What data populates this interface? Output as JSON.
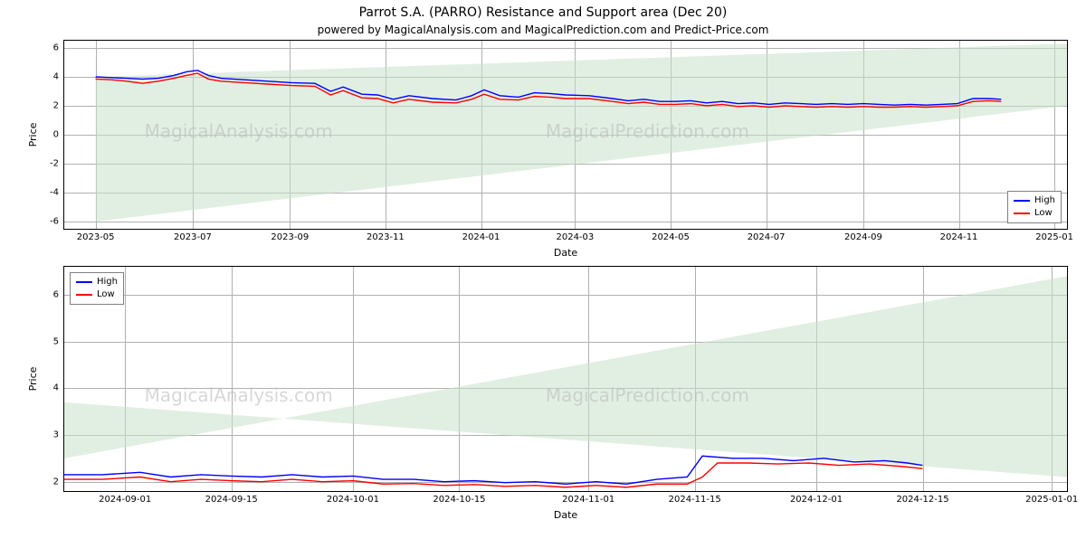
{
  "title": "Parrot S.A. (PARRO) Resistance and Support area (Dec 20)",
  "subtitle": "powered by MagicalAnalysis.com and MagicalPrediction.com and Predict-Price.com",
  "watermark_texts": [
    "MagicalAnalysis.com",
    "MagicalPrediction.com"
  ],
  "colors": {
    "high": "#0000ff",
    "low": "#ff0000",
    "grid": "#b0b0b0",
    "fan_fill": "#c9e2cb",
    "fan_fill_opacity": 0.55,
    "background": "#ffffff",
    "text": "#000000",
    "border": "#000000",
    "watermark": "#b8b8b8"
  },
  "legend": {
    "items": [
      {
        "label": "High",
        "color_key": "high"
      },
      {
        "label": "Low",
        "color_key": "low"
      }
    ]
  },
  "chart_top": {
    "type": "line",
    "ylabel": "Price",
    "xlabel": "Date",
    "ylim": [
      -6.5,
      6.5
    ],
    "yticks": [
      -6,
      -4,
      -2,
      0,
      2,
      4,
      6
    ],
    "x_range": [
      0,
      640
    ],
    "legend_pos": "bottom-right",
    "xticks": [
      {
        "label": "2023-05",
        "t": 20
      },
      {
        "label": "2023-07",
        "t": 82
      },
      {
        "label": "2023-09",
        "t": 144
      },
      {
        "label": "2023-11",
        "t": 205
      },
      {
        "label": "2024-01",
        "t": 266
      },
      {
        "label": "2024-03",
        "t": 326
      },
      {
        "label": "2024-05",
        "t": 387
      },
      {
        "label": "2024-07",
        "t": 448
      },
      {
        "label": "2024-09",
        "t": 510
      },
      {
        "label": "2024-11",
        "t": 571
      },
      {
        "label": "2025-01",
        "t": 632
      }
    ],
    "fan": {
      "vertices_tyv": [
        [
          20,
          -6.0
        ],
        [
          640,
          2.0
        ],
        [
          640,
          6.3
        ],
        [
          20,
          4.0
        ]
      ]
    },
    "series_high": [
      {
        "t": 20,
        "v": 4.0
      },
      {
        "t": 30,
        "v": 3.95
      },
      {
        "t": 40,
        "v": 3.9
      },
      {
        "t": 50,
        "v": 3.85
      },
      {
        "t": 60,
        "v": 3.9
      },
      {
        "t": 70,
        "v": 4.1
      },
      {
        "t": 78,
        "v": 4.35
      },
      {
        "t": 85,
        "v": 4.45
      },
      {
        "t": 92,
        "v": 4.1
      },
      {
        "t": 100,
        "v": 3.9
      },
      {
        "t": 115,
        "v": 3.8
      },
      {
        "t": 130,
        "v": 3.7
      },
      {
        "t": 145,
        "v": 3.6
      },
      {
        "t": 160,
        "v": 3.55
      },
      {
        "t": 170,
        "v": 3.0
      },
      {
        "t": 178,
        "v": 3.3
      },
      {
        "t": 190,
        "v": 2.8
      },
      {
        "t": 200,
        "v": 2.75
      },
      {
        "t": 210,
        "v": 2.45
      },
      {
        "t": 220,
        "v": 2.7
      },
      {
        "t": 235,
        "v": 2.5
      },
      {
        "t": 250,
        "v": 2.4
      },
      {
        "t": 260,
        "v": 2.7
      },
      {
        "t": 268,
        "v": 3.1
      },
      {
        "t": 278,
        "v": 2.7
      },
      {
        "t": 290,
        "v": 2.6
      },
      {
        "t": 300,
        "v": 2.9
      },
      {
        "t": 310,
        "v": 2.85
      },
      {
        "t": 320,
        "v": 2.75
      },
      {
        "t": 335,
        "v": 2.7
      },
      {
        "t": 350,
        "v": 2.5
      },
      {
        "t": 360,
        "v": 2.35
      },
      {
        "t": 370,
        "v": 2.45
      },
      {
        "t": 380,
        "v": 2.3
      },
      {
        "t": 390,
        "v": 2.3
      },
      {
        "t": 400,
        "v": 2.35
      },
      {
        "t": 410,
        "v": 2.2
      },
      {
        "t": 420,
        "v": 2.3
      },
      {
        "t": 430,
        "v": 2.15
      },
      {
        "t": 440,
        "v": 2.2
      },
      {
        "t": 450,
        "v": 2.1
      },
      {
        "t": 460,
        "v": 2.2
      },
      {
        "t": 470,
        "v": 2.15
      },
      {
        "t": 480,
        "v": 2.1
      },
      {
        "t": 490,
        "v": 2.15
      },
      {
        "t": 500,
        "v": 2.1
      },
      {
        "t": 510,
        "v": 2.15
      },
      {
        "t": 520,
        "v": 2.1
      },
      {
        "t": 530,
        "v": 2.05
      },
      {
        "t": 540,
        "v": 2.1
      },
      {
        "t": 550,
        "v": 2.05
      },
      {
        "t": 560,
        "v": 2.1
      },
      {
        "t": 570,
        "v": 2.15
      },
      {
        "t": 580,
        "v": 2.5
      },
      {
        "t": 590,
        "v": 2.5
      },
      {
        "t": 598,
        "v": 2.45
      }
    ],
    "series_low": [
      {
        "t": 20,
        "v": 3.85
      },
      {
        "t": 30,
        "v": 3.8
      },
      {
        "t": 40,
        "v": 3.7
      },
      {
        "t": 50,
        "v": 3.55
      },
      {
        "t": 60,
        "v": 3.7
      },
      {
        "t": 70,
        "v": 3.9
      },
      {
        "t": 78,
        "v": 4.1
      },
      {
        "t": 85,
        "v": 4.25
      },
      {
        "t": 92,
        "v": 3.85
      },
      {
        "t": 100,
        "v": 3.7
      },
      {
        "t": 115,
        "v": 3.6
      },
      {
        "t": 130,
        "v": 3.5
      },
      {
        "t": 145,
        "v": 3.4
      },
      {
        "t": 160,
        "v": 3.35
      },
      {
        "t": 170,
        "v": 2.75
      },
      {
        "t": 178,
        "v": 3.05
      },
      {
        "t": 190,
        "v": 2.55
      },
      {
        "t": 200,
        "v": 2.5
      },
      {
        "t": 210,
        "v": 2.2
      },
      {
        "t": 220,
        "v": 2.45
      },
      {
        "t": 235,
        "v": 2.25
      },
      {
        "t": 250,
        "v": 2.2
      },
      {
        "t": 260,
        "v": 2.45
      },
      {
        "t": 268,
        "v": 2.8
      },
      {
        "t": 278,
        "v": 2.45
      },
      {
        "t": 290,
        "v": 2.4
      },
      {
        "t": 300,
        "v": 2.65
      },
      {
        "t": 310,
        "v": 2.6
      },
      {
        "t": 320,
        "v": 2.5
      },
      {
        "t": 335,
        "v": 2.5
      },
      {
        "t": 350,
        "v": 2.3
      },
      {
        "t": 360,
        "v": 2.15
      },
      {
        "t": 370,
        "v": 2.25
      },
      {
        "t": 380,
        "v": 2.1
      },
      {
        "t": 390,
        "v": 2.1
      },
      {
        "t": 400,
        "v": 2.15
      },
      {
        "t": 410,
        "v": 2.0
      },
      {
        "t": 420,
        "v": 2.1
      },
      {
        "t": 430,
        "v": 1.95
      },
      {
        "t": 440,
        "v": 2.0
      },
      {
        "t": 450,
        "v": 1.9
      },
      {
        "t": 460,
        "v": 2.0
      },
      {
        "t": 470,
        "v": 1.95
      },
      {
        "t": 480,
        "v": 1.9
      },
      {
        "t": 490,
        "v": 1.95
      },
      {
        "t": 500,
        "v": 1.9
      },
      {
        "t": 510,
        "v": 1.95
      },
      {
        "t": 520,
        "v": 1.9
      },
      {
        "t": 530,
        "v": 1.9
      },
      {
        "t": 540,
        "v": 1.95
      },
      {
        "t": 550,
        "v": 1.9
      },
      {
        "t": 560,
        "v": 1.95
      },
      {
        "t": 570,
        "v": 2.0
      },
      {
        "t": 580,
        "v": 2.3
      },
      {
        "t": 590,
        "v": 2.35
      },
      {
        "t": 598,
        "v": 2.3
      }
    ],
    "line_width": 1.4
  },
  "chart_bottom": {
    "type": "line",
    "ylabel": "Price",
    "xlabel": "Date",
    "ylim": [
      1.8,
      6.6
    ],
    "yticks": [
      2,
      3,
      4,
      5,
      6
    ],
    "x_range": [
      0,
      132
    ],
    "legend_pos": "top-left",
    "xticks": [
      {
        "label": "2024-09-01",
        "t": 8
      },
      {
        "label": "2024-09-15",
        "t": 22
      },
      {
        "label": "2024-10-01",
        "t": 38
      },
      {
        "label": "2024-10-15",
        "t": 52
      },
      {
        "label": "2024-11-01",
        "t": 69
      },
      {
        "label": "2024-11-15",
        "t": 83
      },
      {
        "label": "2024-12-01",
        "t": 99
      },
      {
        "label": "2024-12-15",
        "t": 113
      },
      {
        "label": "2025-01-01",
        "t": 130
      }
    ],
    "fan": {
      "vertices_tyv": [
        [
          0,
          3.7
        ],
        [
          132,
          2.1
        ],
        [
          132,
          6.4
        ],
        [
          0,
          2.5
        ]
      ]
    },
    "series_high": [
      {
        "t": 0,
        "v": 2.15
      },
      {
        "t": 5,
        "v": 2.15
      },
      {
        "t": 10,
        "v": 2.2
      },
      {
        "t": 14,
        "v": 2.1
      },
      {
        "t": 18,
        "v": 2.15
      },
      {
        "t": 22,
        "v": 2.12
      },
      {
        "t": 26,
        "v": 2.1
      },
      {
        "t": 30,
        "v": 2.15
      },
      {
        "t": 34,
        "v": 2.1
      },
      {
        "t": 38,
        "v": 2.12
      },
      {
        "t": 42,
        "v": 2.05
      },
      {
        "t": 46,
        "v": 2.05
      },
      {
        "t": 50,
        "v": 2.0
      },
      {
        "t": 54,
        "v": 2.02
      },
      {
        "t": 58,
        "v": 1.98
      },
      {
        "t": 62,
        "v": 2.0
      },
      {
        "t": 66,
        "v": 1.95
      },
      {
        "t": 70,
        "v": 2.0
      },
      {
        "t": 74,
        "v": 1.95
      },
      {
        "t": 78,
        "v": 2.05
      },
      {
        "t": 82,
        "v": 2.1
      },
      {
        "t": 84,
        "v": 2.55
      },
      {
        "t": 88,
        "v": 2.5
      },
      {
        "t": 92,
        "v": 2.5
      },
      {
        "t": 96,
        "v": 2.45
      },
      {
        "t": 100,
        "v": 2.5
      },
      {
        "t": 104,
        "v": 2.42
      },
      {
        "t": 108,
        "v": 2.45
      },
      {
        "t": 111,
        "v": 2.4
      },
      {
        "t": 113,
        "v": 2.35
      }
    ],
    "series_low": [
      {
        "t": 0,
        "v": 2.05
      },
      {
        "t": 5,
        "v": 2.05
      },
      {
        "t": 10,
        "v": 2.1
      },
      {
        "t": 14,
        "v": 2.0
      },
      {
        "t": 18,
        "v": 2.05
      },
      {
        "t": 22,
        "v": 2.02
      },
      {
        "t": 26,
        "v": 2.0
      },
      {
        "t": 30,
        "v": 2.05
      },
      {
        "t": 34,
        "v": 2.0
      },
      {
        "t": 38,
        "v": 2.02
      },
      {
        "t": 42,
        "v": 1.95
      },
      {
        "t": 46,
        "v": 1.96
      },
      {
        "t": 50,
        "v": 1.92
      },
      {
        "t": 54,
        "v": 1.94
      },
      {
        "t": 58,
        "v": 1.9
      },
      {
        "t": 62,
        "v": 1.92
      },
      {
        "t": 66,
        "v": 1.88
      },
      {
        "t": 70,
        "v": 1.92
      },
      {
        "t": 74,
        "v": 1.88
      },
      {
        "t": 78,
        "v": 1.95
      },
      {
        "t": 82,
        "v": 1.95
      },
      {
        "t": 84,
        "v": 2.1
      },
      {
        "t": 86,
        "v": 2.4
      },
      {
        "t": 90,
        "v": 2.4
      },
      {
        "t": 94,
        "v": 2.38
      },
      {
        "t": 98,
        "v": 2.4
      },
      {
        "t": 102,
        "v": 2.35
      },
      {
        "t": 106,
        "v": 2.38
      },
      {
        "t": 110,
        "v": 2.33
      },
      {
        "t": 113,
        "v": 2.28
      }
    ],
    "line_width": 1.4
  }
}
